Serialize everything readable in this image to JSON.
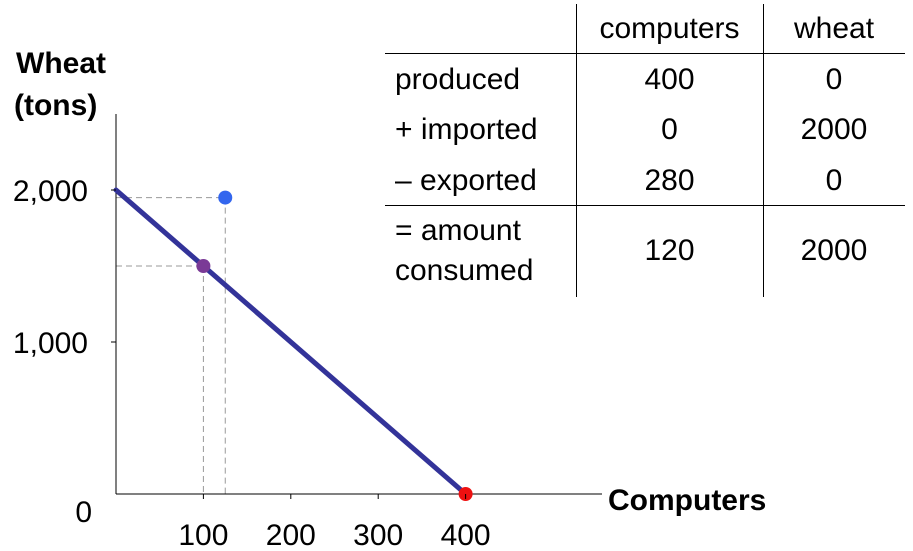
{
  "chart_data": {
    "type": "line",
    "ylabel_line1": "Wheat",
    "ylabel_line2": "(tons)",
    "xlabel": "Computers",
    "x_ticks": [
      "100",
      "200",
      "300",
      "400"
    ],
    "x_tick_values": [
      100,
      200,
      300,
      400
    ],
    "y_ticks": [
      "0",
      "1,000",
      "2,000"
    ],
    "y_tick_values": [
      0,
      1000,
      2000
    ],
    "xlim": [
      0,
      500
    ],
    "ylim": [
      0,
      2500
    ],
    "grid": false,
    "series": [
      {
        "x": [
          0,
          400
        ],
        "y": [
          2000,
          0
        ],
        "color": "#333399"
      }
    ],
    "points": [
      {
        "x": 100,
        "y": 1500,
        "color": "#7a3a96"
      },
      {
        "x": 125,
        "y": 1950,
        "color": "#3366ee"
      },
      {
        "x": 400,
        "y": 0,
        "color": "#ee1111"
      }
    ],
    "guides": [
      {
        "x": 100,
        "y": 1500
      },
      {
        "x": 125,
        "y": 1950
      }
    ]
  },
  "table": {
    "headers": [
      "",
      "computers",
      "wheat"
    ],
    "rows": [
      {
        "label": "produced",
        "computers": "400",
        "wheat": "0"
      },
      {
        "label": "+ imported",
        "computers": "0",
        "wheat": "2000"
      },
      {
        "label": "– exported",
        "computers": "280",
        "wheat": "0"
      },
      {
        "label_line1": "= amount",
        "label_line2": "consumed",
        "computers": "120",
        "wheat": "2000"
      }
    ]
  }
}
